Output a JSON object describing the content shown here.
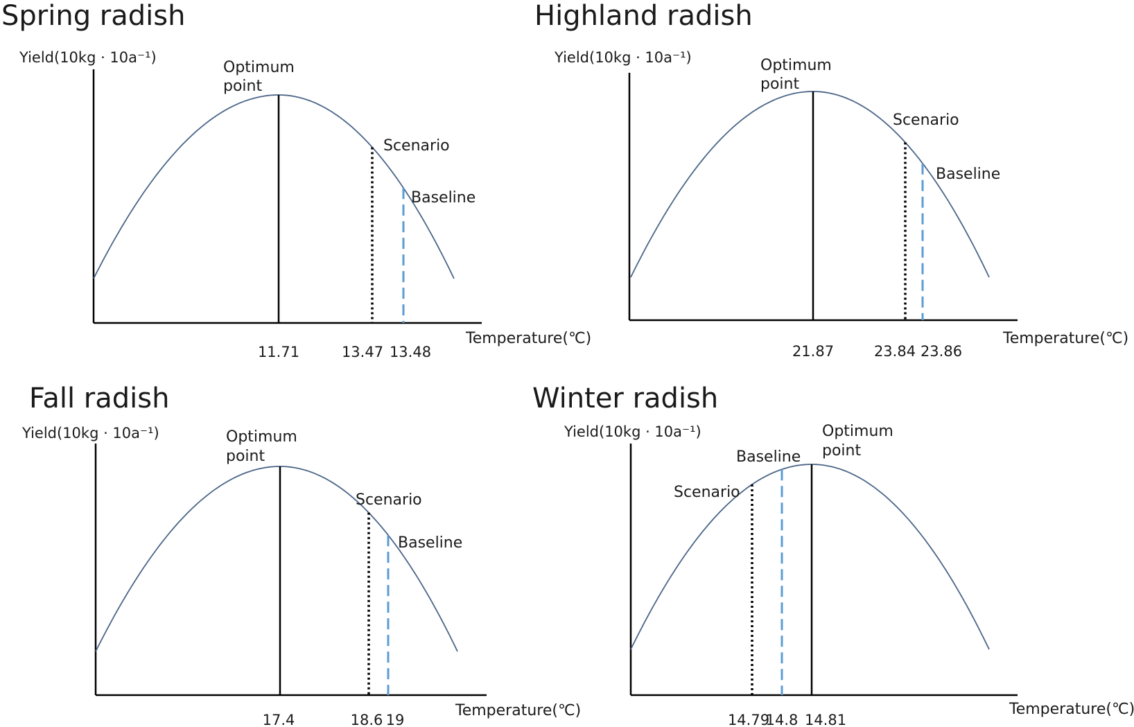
{
  "chart_data": [
    {
      "type": "line",
      "title": "Spring radish",
      "ylabel": "Yield(10kg · 10a⁻¹)",
      "xlabel": "Temperature(℃)",
      "curve": "yield response curve",
      "optimum": {
        "label_line1": "Optimum",
        "label_line2": "point",
        "value": "11.71"
      },
      "scenario": {
        "label": "Scenario",
        "value": "13.47"
      },
      "baseline": {
        "label": "Baseline",
        "value": "13.48"
      },
      "colors": {
        "curve": "#4a6587",
        "optimum": "#000000",
        "scenario": "#000000",
        "baseline": "#5b9bd5"
      }
    },
    {
      "type": "line",
      "title": "Highland radish",
      "ylabel": "Yield(10kg · 10a⁻¹)",
      "xlabel": "Temperature(℃)",
      "curve": "yield response curve",
      "optimum": {
        "label_line1": "Optimum",
        "label_line2": "point",
        "value": "21.87"
      },
      "scenario": {
        "label": "Scenario",
        "value": "23.84"
      },
      "baseline": {
        "label": "Baseline",
        "value": "23.86"
      },
      "colors": {
        "curve": "#4a6587",
        "optimum": "#000000",
        "scenario": "#000000",
        "baseline": "#5b9bd5"
      }
    },
    {
      "type": "line",
      "title": "Fall radish",
      "ylabel": "Yield(10kg · 10a⁻¹)",
      "xlabel": "Temperature(℃)",
      "curve": "yield response curve",
      "optimum": {
        "label_line1": "Optimum",
        "label_line2": "point",
        "value": "17.4"
      },
      "scenario": {
        "label": "Scenario",
        "value": "18.6"
      },
      "baseline": {
        "label": "Baseline",
        "value": "19"
      },
      "colors": {
        "curve": "#4a6587",
        "optimum": "#000000",
        "scenario": "#000000",
        "baseline": "#5b9bd5"
      }
    },
    {
      "type": "line",
      "title": "Winter radish",
      "ylabel": "Yield(10kg · 10a⁻¹)",
      "xlabel": "Temperature(℃)",
      "curve": "yield response curve",
      "optimum": {
        "label_line1": "Optimum",
        "label_line2": "point",
        "value": "14.81"
      },
      "scenario": {
        "label": "Scenario",
        "value": "14.79"
      },
      "baseline": {
        "label": "Baseline",
        "value": "14.8"
      },
      "colors": {
        "curve": "#4a6587",
        "optimum": "#000000",
        "scenario": "#000000",
        "baseline": "#5b9bd5"
      }
    }
  ]
}
